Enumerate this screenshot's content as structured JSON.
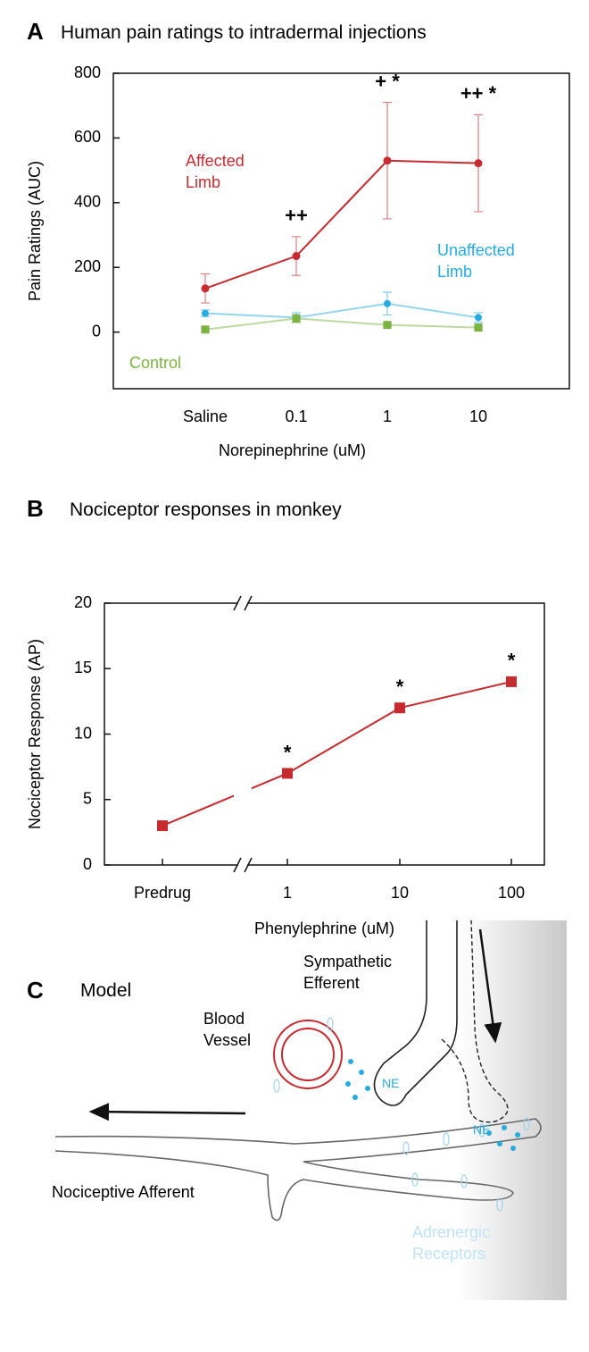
{
  "chart_data": [
    {
      "type": "line",
      "panel": "A",
      "title": "Human pain ratings to intradermal injections",
      "x_label": "Norepinephrine (uM)",
      "y_label": "Pain Ratings (AUC)",
      "categories": [
        "Saline",
        "0.1",
        "1",
        "10"
      ],
      "series": [
        {
          "name": "Affected Limb",
          "color": "#c62b30",
          "values": [
            135,
            235,
            530,
            522
          ],
          "errors": [
            45,
            60,
            180,
            150
          ]
        },
        {
          "name": "Unaffected Limb",
          "color": "#29abe2",
          "values": [
            58,
            45,
            88,
            45
          ],
          "errors": [
            10,
            15,
            35,
            15
          ]
        },
        {
          "name": "Control",
          "color": "#7cb342",
          "values": [
            8,
            42,
            22,
            14
          ],
          "errors": [
            5,
            12,
            4,
            4
          ]
        }
      ],
      "ylim": [
        -175,
        800
      ],
      "yticks": [
        0,
        200,
        400,
        600,
        800
      ],
      "annotations": [
        {
          "category": "0.1",
          "text": "++"
        },
        {
          "category": "1",
          "text": "+ *"
        },
        {
          "category": "10",
          "text": "++ *"
        }
      ]
    },
    {
      "type": "line",
      "panel": "B",
      "title": "Nociceptor responses in monkey",
      "x_label": "Phenylephrine (uM)",
      "y_label": "Nociceptor Response (AP)",
      "categories": [
        "Predrug",
        "1",
        "10",
        "100"
      ],
      "series": [
        {
          "name": "Nociceptor",
          "color": "#c62b30",
          "values": [
            3,
            7,
            12,
            14
          ]
        }
      ],
      "ylim": [
        0,
        20
      ],
      "yticks": [
        0,
        5,
        10,
        15,
        20
      ],
      "axis_break": true,
      "annotations": [
        {
          "category": "1",
          "text": "*"
        },
        {
          "category": "10",
          "text": "*"
        },
        {
          "category": "100",
          "text": "*"
        }
      ]
    }
  ],
  "diagram": {
    "panel": "C",
    "title": "Model",
    "sympathetic": "Sympathetic Efferent",
    "vessel": "Blood Vessel",
    "ne_left": "NE",
    "ne_right": "NE",
    "afferent": "Nociceptive Afferent",
    "receptors": "Adrenergic Receptors"
  }
}
